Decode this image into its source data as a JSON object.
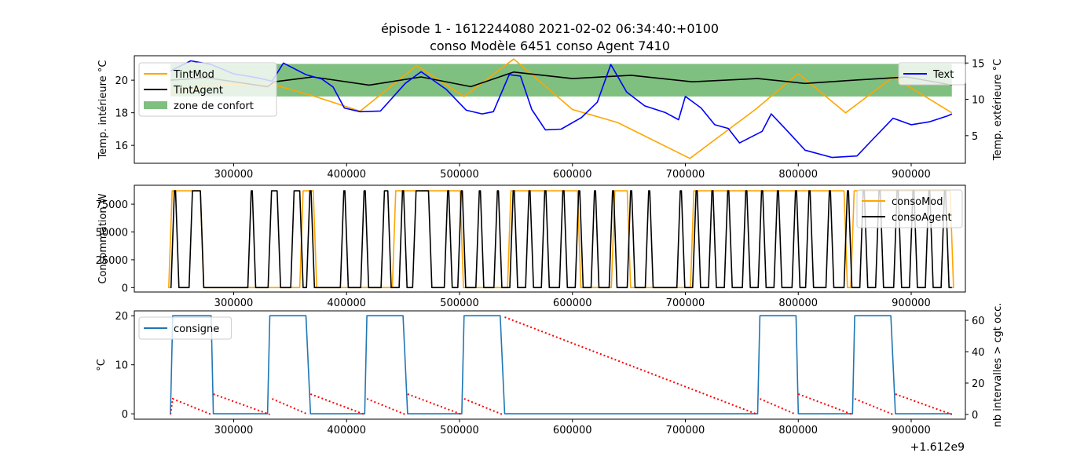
{
  "figure": {
    "title_line1": "épisode 1 - 1612244080 2021-02-02 06:34:40:+0100",
    "title_line2": "conso Modèle 6451 conso Agent 7410",
    "x_offset_label": "+1.612e9",
    "x_tick_labels": [
      "300000",
      "400000",
      "500000",
      "600000",
      "700000",
      "800000",
      "900000"
    ]
  },
  "colors": {
    "tintmod": "#ffa500",
    "tintagent": "#000000",
    "text": "#0000ff",
    "comfort": "#008000",
    "consigne": "#1f77b4",
    "occupancy": "#ff0000"
  },
  "chart_data": [
    {
      "type": "line",
      "panel": "temperatures",
      "x_offset": 1612000000,
      "xlim": [
        212000,
        948000
      ],
      "ylabel": "Temp. intérieure °C",
      "ylim": [
        14.9,
        21.5
      ],
      "y_ticks": [
        16,
        18,
        20
      ],
      "y2label": "Temp. extérieure °C",
      "y2lim": [
        1.2,
        16.0
      ],
      "y2_ticks": [
        5,
        10,
        15
      ],
      "comfort_zone": {
        "name": "zone de confort",
        "x": [
          244000,
          936000
        ],
        "y": [
          19,
          21
        ]
      },
      "legend_left": "top-left",
      "legend_right": "top-right",
      "series": [
        {
          "name": "TintMod",
          "axis": "left",
          "color_key": "tintmod",
          "points": [
            [
              244000,
              19.2
            ],
            [
              280000,
              19.7
            ],
            [
              332000,
              19.8
            ],
            [
              372000,
              19.0
            ],
            [
              412000,
              18.1
            ],
            [
              462000,
              20.9
            ],
            [
              504000,
              19.0
            ],
            [
              548000,
              21.3
            ],
            [
              600000,
              18.2
            ],
            [
              640000,
              17.4
            ],
            [
              704000,
              15.2
            ],
            [
              762000,
              18.2
            ],
            [
              800000,
              20.4
            ],
            [
              842000,
              18.0
            ],
            [
              884000,
              20.2
            ],
            [
              936000,
              18.0
            ]
          ]
        },
        {
          "name": "TintAgent",
          "axis": "left",
          "color_key": "tintagent",
          "points": [
            [
              244000,
              20.0
            ],
            [
              276000,
              20.15
            ],
            [
              330000,
              19.6
            ],
            [
              336000,
              19.9
            ],
            [
              370000,
              20.2
            ],
            [
              420000,
              19.7
            ],
            [
              466000,
              20.2
            ],
            [
              510000,
              19.6
            ],
            [
              548000,
              20.5
            ],
            [
              600000,
              20.1
            ],
            [
              652000,
              20.3
            ],
            [
              706000,
              19.9
            ],
            [
              764000,
              20.1
            ],
            [
              806000,
              19.8
            ],
            [
              850000,
              20.0
            ],
            [
              896000,
              20.2
            ],
            [
              936000,
              19.7
            ]
          ]
        },
        {
          "name": "Text",
          "axis": "right",
          "color_key": "text",
          "points": [
            [
              244000,
              13.9
            ],
            [
              262000,
              15.3
            ],
            [
              280000,
              14.8
            ],
            [
              300000,
              13.5
            ],
            [
              320000,
              13.0
            ],
            [
              334000,
              12.5
            ],
            [
              344000,
              15.0
            ],
            [
              364000,
              13.4
            ],
            [
              378000,
              12.8
            ],
            [
              388000,
              11.7
            ],
            [
              398000,
              8.8
            ],
            [
              412000,
              8.3
            ],
            [
              430000,
              8.4
            ],
            [
              452000,
              12.2
            ],
            [
              466000,
              13.8
            ],
            [
              488000,
              11.4
            ],
            [
              506000,
              8.5
            ],
            [
              520000,
              8.0
            ],
            [
              530000,
              8.3
            ],
            [
              544000,
              13.4
            ],
            [
              554000,
              13.2
            ],
            [
              564000,
              8.6
            ],
            [
              576000,
              5.8
            ],
            [
              590000,
              5.9
            ],
            [
              608000,
              7.5
            ],
            [
              622000,
              9.6
            ],
            [
              634000,
              14.8
            ],
            [
              648000,
              11.0
            ],
            [
              664000,
              9.1
            ],
            [
              682000,
              8.2
            ],
            [
              694000,
              7.2
            ],
            [
              700000,
              10.4
            ],
            [
              714000,
              8.8
            ],
            [
              726000,
              6.5
            ],
            [
              738000,
              6.0
            ],
            [
              748000,
              4.0
            ],
            [
              768000,
              5.6
            ],
            [
              776000,
              8.0
            ],
            [
              790000,
              5.7
            ],
            [
              806000,
              3.0
            ],
            [
              830000,
              2.0
            ],
            [
              852000,
              2.2
            ],
            [
              866000,
              4.5
            ],
            [
              884000,
              7.4
            ],
            [
              900000,
              6.5
            ],
            [
              916000,
              6.9
            ],
            [
              932000,
              7.7
            ],
            [
              936000,
              8.0
            ]
          ]
        }
      ]
    },
    {
      "type": "line",
      "panel": "consumption",
      "x_offset": 1612000000,
      "xlim": [
        212000,
        948000
      ],
      "ylabel": "Consommation W",
      "ylim": [
        -4000,
        92000
      ],
      "y_ticks": [
        0,
        25000,
        50000,
        75000
      ],
      "levels": {
        "off": 0,
        "on": 87000
      },
      "legend": "top-right",
      "series": [
        {
          "name": "consoMod",
          "color_key": "tintmod",
          "on_intervals": [
            [
              244000,
              272000
            ],
            [
              360000,
              372000
            ],
            [
              442000,
              502000
            ],
            [
              544000,
              606000
            ],
            [
              636000,
              650000
            ],
            [
              706000,
              842000
            ],
            [
              848000,
              936000
            ]
          ]
        },
        {
          "name": "consoAgent",
          "color_key": "tintagent",
          "on_intervals": [
            [
              246000,
              250000
            ],
            [
              262000,
              272000
            ],
            [
              314000,
              318000
            ],
            [
              332000,
              340000
            ],
            [
              352000,
              360000
            ],
            [
              366000,
              370000
            ],
            [
              396000,
              400000
            ],
            [
              414000,
              418000
            ],
            [
              432000,
              438000
            ],
            [
              448000,
              452000
            ],
            [
              460000,
              474000
            ],
            [
              488000,
              492000
            ],
            [
              500000,
              504000
            ],
            [
              516000,
              520000
            ],
            [
              532000,
              536000
            ],
            [
              546000,
              550000
            ],
            [
              560000,
              564000
            ],
            [
              574000,
              578000
            ],
            [
              590000,
              594000
            ],
            [
              604000,
              608000
            ],
            [
              618000,
              622000
            ],
            [
              634000,
              638000
            ],
            [
              650000,
              654000
            ],
            [
              666000,
              670000
            ],
            [
              694000,
              698000
            ],
            [
              708000,
              712000
            ],
            [
              722000,
              726000
            ],
            [
              736000,
              740000
            ],
            [
              752000,
              756000
            ],
            [
              766000,
              770000
            ],
            [
              780000,
              784000
            ],
            [
              796000,
              800000
            ],
            [
              808000,
              812000
            ],
            [
              826000,
              830000
            ],
            [
              842000,
              846000
            ],
            [
              856000,
              860000
            ],
            [
              870000,
              874000
            ],
            [
              886000,
              890000
            ],
            [
              900000,
              904000
            ],
            [
              914000,
              918000
            ],
            [
              928000,
              932000
            ]
          ]
        }
      ]
    },
    {
      "type": "line",
      "panel": "setpoint",
      "x_offset": 1612000000,
      "xlim": [
        212000,
        948000
      ],
      "ylabel": "°C",
      "ylim": [
        -1.1,
        21.0
      ],
      "y_ticks": [
        0,
        10,
        20
      ],
      "y2label": "nb intervalles > cgt occ.",
      "y2lim": [
        -3,
        66
      ],
      "y2_ticks": [
        0,
        20,
        40,
        60
      ],
      "legend": "top-left",
      "series": [
        {
          "name": "consigne",
          "color_key": "consigne",
          "points": [
            [
              244000,
              0
            ],
            [
              246000,
              20
            ],
            [
              280000,
              20
            ],
            [
              282000,
              0
            ],
            [
              330000,
              0
            ],
            [
              332000,
              20
            ],
            [
              364000,
              20
            ],
            [
              368000,
              0
            ],
            [
              416000,
              0
            ],
            [
              418000,
              20
            ],
            [
              450000,
              20
            ],
            [
              454000,
              0
            ],
            [
              502000,
              0
            ],
            [
              504000,
              20
            ],
            [
              536000,
              20
            ],
            [
              540000,
              0
            ],
            [
              764000,
              0
            ],
            [
              766000,
              20
            ],
            [
              798000,
              20
            ],
            [
              800000,
              0
            ],
            [
              848000,
              0
            ],
            [
              850000,
              20
            ],
            [
              882000,
              20
            ],
            [
              886000,
              0
            ],
            [
              936000,
              0
            ]
          ]
        },
        {
          "color_key": "occupancy",
          "axis": "right",
          "style": "dotted",
          "points": [
            [
              244000,
              0
            ],
            [
              246000,
              10
            ],
            [
              280000,
              0
            ],
            null,
            [
              282000,
              13
            ],
            [
              332000,
              0
            ],
            null,
            [
              334000,
              10
            ],
            [
              366000,
              0
            ],
            null,
            [
              368000,
              13
            ],
            [
              416000,
              0
            ],
            null,
            [
              418000,
              10
            ],
            [
              452000,
              0
            ],
            null,
            [
              454000,
              13
            ],
            [
              502000,
              0
            ],
            null,
            [
              504000,
              10
            ],
            [
              538000,
              0
            ],
            null,
            [
              540000,
              62
            ],
            [
              764000,
              0
            ],
            null,
            [
              766000,
              10
            ],
            [
              798000,
              0
            ],
            null,
            [
              800000,
              13
            ],
            [
              848000,
              0
            ],
            null,
            [
              850000,
              10
            ],
            [
              884000,
              0
            ],
            null,
            [
              886000,
              13
            ],
            [
              936000,
              0
            ]
          ]
        }
      ]
    }
  ]
}
